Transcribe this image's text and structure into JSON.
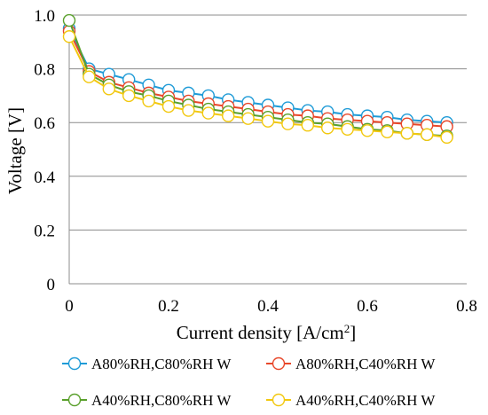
{
  "chart_data": {
    "type": "line",
    "xlabel": "Current density [A/cm",
    "xlabel_sup": "2",
    "xlabel_end": "]",
    "ylabel": "Voltage [V]",
    "xlim": [
      0,
      0.8
    ],
    "ylim": [
      0,
      1.0
    ],
    "x_ticks": [
      "0",
      "0.2",
      "0.4",
      "0.6",
      "0.8"
    ],
    "y_ticks": [
      "0",
      "0.2",
      "0.4",
      "0.6",
      "0.8",
      "1.0"
    ],
    "grid": "horizontal",
    "legend_position": "bottom",
    "x": [
      0,
      0.04,
      0.08,
      0.12,
      0.16,
      0.2,
      0.24,
      0.28,
      0.32,
      0.36,
      0.4,
      0.44,
      0.48,
      0.52,
      0.56,
      0.6,
      0.64,
      0.68,
      0.72,
      0.76
    ],
    "series": [
      {
        "name": "A80%RH,C80%RH W",
        "color": "#1f9bd7",
        "values": [
          0.95,
          0.8,
          0.78,
          0.76,
          0.74,
          0.72,
          0.71,
          0.7,
          0.685,
          0.675,
          0.665,
          0.655,
          0.645,
          0.64,
          0.63,
          0.625,
          0.62,
          0.61,
          0.605,
          0.6
        ]
      },
      {
        "name": "A80%RH,C40%RH W",
        "color": "#e8472a",
        "values": [
          0.94,
          0.79,
          0.75,
          0.73,
          0.71,
          0.695,
          0.68,
          0.67,
          0.66,
          0.65,
          0.64,
          0.63,
          0.625,
          0.615,
          0.61,
          0.605,
          0.6,
          0.595,
          0.59,
          0.585
        ]
      },
      {
        "name": "A40%RH,C80%RH W",
        "color": "#5aa02c",
        "values": [
          0.98,
          0.78,
          0.74,
          0.715,
          0.7,
          0.68,
          0.665,
          0.65,
          0.64,
          0.63,
          0.62,
          0.61,
          0.6,
          0.595,
          0.585,
          0.575,
          0.57,
          0.56,
          0.555,
          0.55
        ]
      },
      {
        "name": "A40%RH,C40%RH W",
        "color": "#f2c80f",
        "values": [
          0.92,
          0.77,
          0.725,
          0.7,
          0.68,
          0.66,
          0.645,
          0.635,
          0.625,
          0.615,
          0.605,
          0.595,
          0.59,
          0.58,
          0.575,
          0.57,
          0.565,
          0.56,
          0.555,
          0.545
        ]
      }
    ]
  }
}
